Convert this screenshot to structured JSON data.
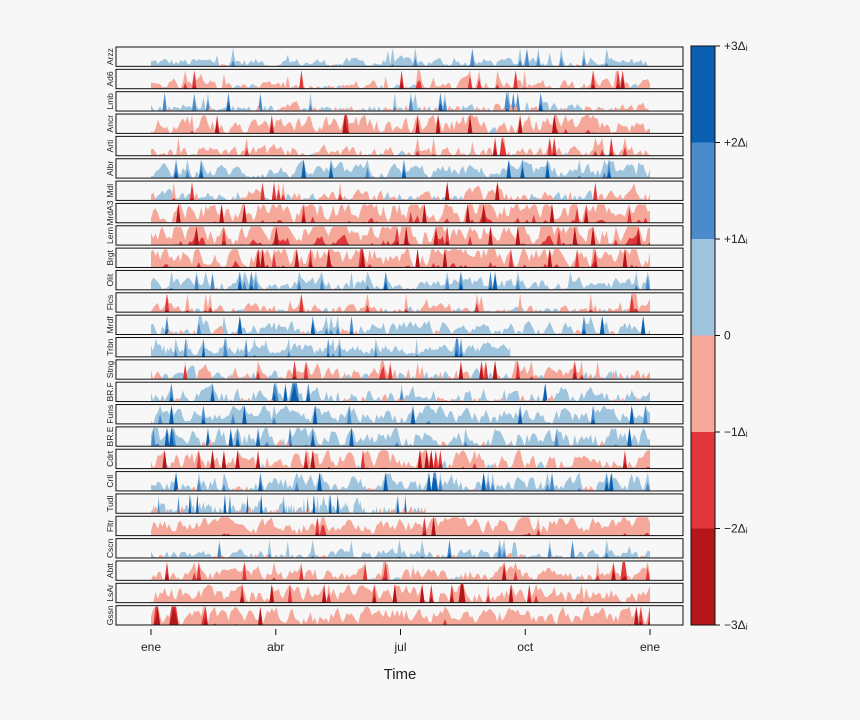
{
  "chart_data": {
    "type": "area",
    "subtype": "horizon",
    "xlabel": "Time",
    "x_ticks": [
      "ene",
      "abr",
      "jul",
      "oct",
      "ene"
    ],
    "x_range": [
      "ene",
      "ene (next year)"
    ],
    "y_ticks_per_panel": "none",
    "grid": false,
    "legend": "right colorbar",
    "colorbar": {
      "ticks": [
        "+3Δᵢ",
        "+2Δᵢ",
        "+1Δᵢ",
        "0",
        "−1Δᵢ",
        "−2Δᵢ",
        "−3Δᵢ"
      ],
      "colors": [
        "#0a5fb0",
        "#4a8ccb",
        "#9ec4de",
        "#f5a89a",
        "#e0373a",
        "#b5161a"
      ]
    },
    "colors": {
      "pos1": "#9ec4de",
      "pos2": "#4a8ccb",
      "pos3": "#0a5fb0",
      "neg1": "#f5a89a",
      "neg2": "#e0373a",
      "neg3": "#b5161a",
      "panel_bg": "#f7f7f7",
      "panel_border": "#111111"
    },
    "series": [
      {
        "name": "Arzz",
        "bias": 0.2,
        "amp": 0.7,
        "end": 1.0
      },
      {
        "name": "Ad6",
        "bias": -0.15,
        "amp": 0.9,
        "end": 1.0
      },
      {
        "name": "Lmb",
        "bias": 0.05,
        "amp": 1.0,
        "end": 1.0
      },
      {
        "name": "Ancr",
        "bias": -0.45,
        "amp": 1.3,
        "end": 1.0
      },
      {
        "name": "Arti",
        "bias": -0.2,
        "amp": 0.9,
        "end": 1.0
      },
      {
        "name": "Albr",
        "bias": 0.35,
        "amp": 1.0,
        "end": 1.0
      },
      {
        "name": "Mdl",
        "bias": -0.05,
        "amp": 1.2,
        "end": 1.0
      },
      {
        "name": "MrdA3",
        "bias": -0.7,
        "amp": 1.5,
        "end": 1.0
      },
      {
        "name": "Lern",
        "bias": -0.7,
        "amp": 1.5,
        "end": 1.0
      },
      {
        "name": "Brgt",
        "bias": -0.65,
        "amp": 1.5,
        "end": 1.0
      },
      {
        "name": "Olit",
        "bias": 0.3,
        "amp": 0.9,
        "end": 1.0
      },
      {
        "name": "Flcs",
        "bias": -0.1,
        "amp": 0.8,
        "end": 1.0
      },
      {
        "name": "Mrdf",
        "bias": 0.25,
        "amp": 1.2,
        "end": 1.0
      },
      {
        "name": "Trbn",
        "bias": 0.45,
        "amp": 0.7,
        "end": 0.72
      },
      {
        "name": "Stng",
        "bias": -0.1,
        "amp": 1.4,
        "end": 1.0
      },
      {
        "name": "BR.F",
        "bias": 0.25,
        "amp": 1.4,
        "end": 1.0
      },
      {
        "name": "Funs",
        "bias": 0.45,
        "amp": 1.2,
        "end": 1.0
      },
      {
        "name": "BR.E",
        "bias": 0.4,
        "amp": 1.5,
        "end": 1.0
      },
      {
        "name": "Cdrt",
        "bias": -0.35,
        "amp": 1.4,
        "end": 1.0
      },
      {
        "name": "Crll",
        "bias": 0.35,
        "amp": 1.3,
        "end": 1.0
      },
      {
        "name": "Tudl",
        "bias": 0.2,
        "amp": 1.2,
        "end": 0.55
      },
      {
        "name": "Fltr",
        "bias": -0.55,
        "amp": 1.1,
        "end": 1.0
      },
      {
        "name": "Cscn",
        "bias": 0.15,
        "amp": 0.8,
        "end": 1.0
      },
      {
        "name": "Abtt",
        "bias": -0.3,
        "amp": 1.0,
        "end": 1.0
      },
      {
        "name": "LsAr",
        "bias": -0.45,
        "amp": 1.2,
        "end": 1.0
      },
      {
        "name": "Gssn",
        "bias": -0.5,
        "amp": 1.2,
        "end": 1.0
      }
    ]
  }
}
